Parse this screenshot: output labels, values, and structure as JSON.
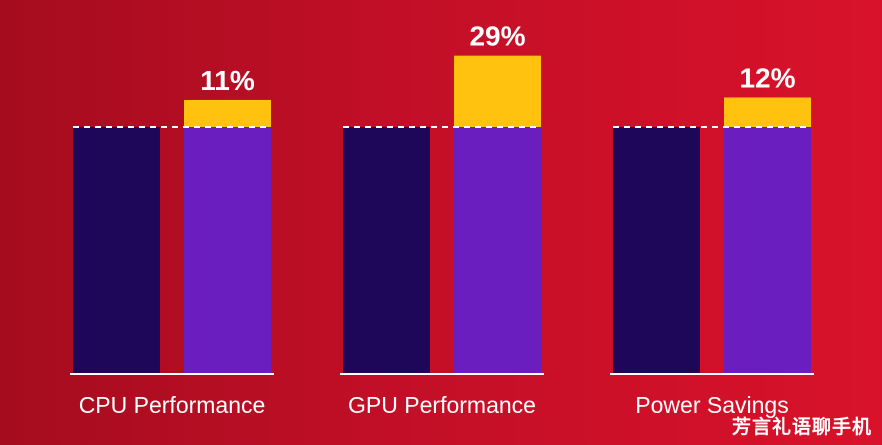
{
  "chart_data": {
    "type": "bar",
    "baseline_label": "",
    "categories": [
      "CPU Performance",
      "GPU Performance",
      "Power Savings"
    ],
    "series": [
      {
        "values": [
          100,
          100,
          100
        ]
      },
      {
        "values": [
          111,
          129,
          112
        ]
      }
    ],
    "increase_labels": [
      "11%",
      "29%",
      "12%"
    ],
    "ylim": [
      0,
      129
    ],
    "grid": false,
    "legend": "none",
    "colors": {
      "baseline_bar": "#1e0759",
      "new_bar": "#6a1ec0",
      "gain_segment": "#ffc20e",
      "text": "#ffffff",
      "reference_line": "#ffffff"
    }
  },
  "watermark": "芳言礼语聊手机"
}
